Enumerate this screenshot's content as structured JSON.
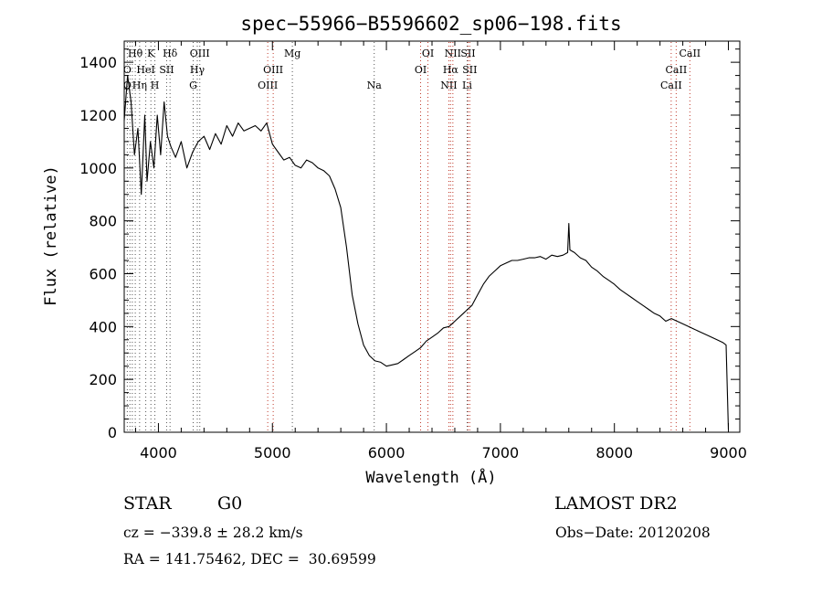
{
  "chart_data": {
    "type": "line",
    "title": "spec−55966−B5596602_sp06−198.fits",
    "xlabel": "Wavelength (Å)",
    "ylabel": "Flux (relative)",
    "xlim": [
      3700,
      9100
    ],
    "ylim": [
      0,
      1480
    ],
    "xticks": [
      4000,
      5000,
      6000,
      7000,
      8000,
      9000
    ],
    "yticks": [
      0,
      200,
      400,
      600,
      800,
      1000,
      1200,
      1400
    ],
    "grid": false,
    "series": [
      {
        "x": [
          3700,
          3730,
          3760,
          3790,
          3820,
          3850,
          3880,
          3900,
          3930,
          3960,
          3990,
          4020,
          4050,
          4080,
          4110,
          4150,
          4200,
          4250,
          4300,
          4350,
          4400,
          4450,
          4500,
          4550,
          4600,
          4650,
          4700,
          4750,
          4800,
          4850,
          4900,
          4950,
          5000,
          5050,
          5100,
          5150,
          5200,
          5250,
          5300,
          5350,
          5400,
          5450,
          5500,
          5550,
          5600,
          5650,
          5700,
          5750,
          5800,
          5850,
          5900,
          5950,
          6000,
          6050,
          6100,
          6150,
          6200,
          6250,
          6300,
          6350,
          6400,
          6450,
          6500,
          6550,
          6600,
          6650,
          6700,
          6750,
          6800,
          6850,
          6900,
          6950,
          7000,
          7050,
          7100,
          7150,
          7200,
          7250,
          7300,
          7350,
          7400,
          7450,
          7500,
          7550,
          7590,
          7600,
          7610,
          7650,
          7700,
          7750,
          7800,
          7850,
          7900,
          7950,
          8000,
          8050,
          8100,
          8150,
          8200,
          8250,
          8300,
          8350,
          8400,
          8450,
          8500,
          8550,
          8600,
          8650,
          8700,
          8750,
          8800,
          8850,
          8900,
          8950,
          8980,
          9000
        ],
        "y": [
          1180,
          1350,
          1250,
          1050,
          1150,
          900,
          1200,
          950,
          1100,
          1000,
          1200,
          1050,
          1250,
          1120,
          1080,
          1040,
          1100,
          1000,
          1060,
          1100,
          1120,
          1070,
          1130,
          1090,
          1160,
          1120,
          1170,
          1140,
          1150,
          1160,
          1140,
          1170,
          1090,
          1060,
          1030,
          1040,
          1010,
          1000,
          1030,
          1020,
          1000,
          990,
          970,
          920,
          850,
          700,
          520,
          410,
          330,
          290,
          270,
          265,
          250,
          255,
          260,
          275,
          290,
          305,
          320,
          345,
          360,
          375,
          395,
          400,
          420,
          440,
          460,
          480,
          520,
          560,
          590,
          610,
          630,
          640,
          650,
          650,
          655,
          660,
          660,
          665,
          655,
          670,
          665,
          670,
          680,
          790,
          690,
          680,
          660,
          650,
          625,
          610,
          590,
          575,
          560,
          540,
          525,
          510,
          495,
          480,
          465,
          450,
          440,
          420,
          430,
          420,
          410,
          400,
          390,
          380,
          370,
          360,
          350,
          340,
          330,
          10
        ]
      }
    ],
    "line_labels": [
      {
        "text": "Hθ",
        "x": 3797,
        "row": 1
      },
      {
        "text": "K",
        "x": 3934,
        "row": 1
      },
      {
        "text": "Hδ",
        "x": 4102,
        "row": 1
      },
      {
        "text": "OIII",
        "x": 4363,
        "row": 1
      },
      {
        "text": "Mg",
        "x": 5175,
        "row": 1
      },
      {
        "text": "OI",
        "x": 6364,
        "row": 1
      },
      {
        "text": "NII",
        "x": 6583,
        "row": 1
      },
      {
        "text": "SII",
        "x": 6716,
        "row": 1
      },
      {
        "text": "CaII",
        "x": 8662,
        "row": 1
      },
      {
        "text": "O",
        "x": 3727,
        "row": 2
      },
      {
        "text": "HeI",
        "x": 3889,
        "row": 2
      },
      {
        "text": "SII",
        "x": 4072,
        "row": 2
      },
      {
        "text": "Hγ",
        "x": 4341,
        "row": 2
      },
      {
        "text": "OIII",
        "x": 5007,
        "row": 2
      },
      {
        "text": "OI",
        "x": 6300,
        "row": 2
      },
      {
        "text": "Hα",
        "x": 6563,
        "row": 2
      },
      {
        "text": "SII",
        "x": 6731,
        "row": 2
      },
      {
        "text": "CaII",
        "x": 8542,
        "row": 2
      },
      {
        "text": "O",
        "x": 3727,
        "row": 3
      },
      {
        "text": "Hη",
        "x": 3835,
        "row": 3
      },
      {
        "text": "H",
        "x": 3969,
        "row": 3
      },
      {
        "text": "G",
        "x": 4305,
        "row": 3
      },
      {
        "text": "OIII",
        "x": 4959,
        "row": 3
      },
      {
        "text": "Na",
        "x": 5893,
        "row": 3
      },
      {
        "text": "NII",
        "x": 6548,
        "row": 3
      },
      {
        "text": "Li",
        "x": 6708,
        "row": 3
      },
      {
        "text": "CaII",
        "x": 8498,
        "row": 3
      }
    ],
    "line_markers": [
      3727,
      3750,
      3771,
      3797,
      3835,
      3889,
      3934,
      3969,
      4072,
      4102,
      4305,
      4341,
      4363,
      4959,
      5007,
      5175,
      5893,
      6300,
      6364,
      6548,
      6563,
      6583,
      6708,
      6716,
      6731,
      8498,
      8542,
      8662
    ],
    "red_markers": [
      4959,
      5007,
      6300,
      6364,
      6548,
      6563,
      6583,
      6716,
      6731,
      8498,
      8542,
      8662
    ]
  },
  "info": {
    "class": "STAR",
    "subclass": "G0",
    "survey": "LAMOST DR2",
    "redshift": "cz = −339.8 ± 28.2 km/s",
    "obsdate": "Obs−Date: 20120208",
    "coords": "RA = 141.75462, DEC =  30.69599"
  }
}
